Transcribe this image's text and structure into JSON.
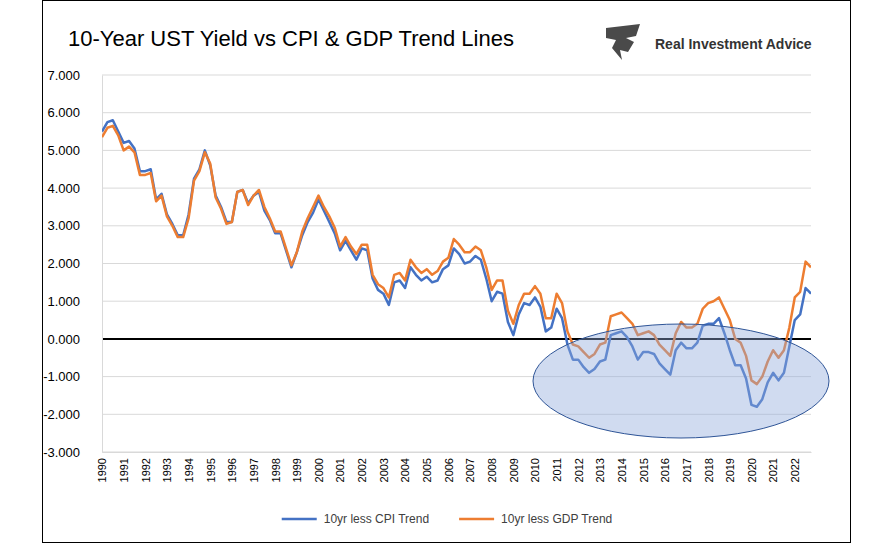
{
  "chart_data": {
    "type": "line",
    "title": "10-Year UST Yield vs CPI & GDP Trend Lines",
    "logo_text": "Real Investment Advice",
    "categories": [
      "1990",
      null,
      null,
      null,
      "1991",
      null,
      null,
      null,
      "1992",
      null,
      null,
      null,
      "1993",
      null,
      null,
      null,
      "1994",
      null,
      null,
      null,
      "1995",
      null,
      null,
      null,
      "1996",
      null,
      null,
      null,
      "1997",
      null,
      null,
      null,
      "1998",
      null,
      null,
      null,
      "1999",
      null,
      null,
      null,
      "2000",
      null,
      null,
      null,
      "2001",
      null,
      null,
      null,
      "2002",
      null,
      null,
      null,
      "2003",
      null,
      null,
      null,
      "2004",
      null,
      null,
      null,
      "2005",
      null,
      null,
      null,
      "2006",
      null,
      null,
      null,
      "2007",
      null,
      null,
      null,
      "2008",
      null,
      null,
      null,
      "2009",
      null,
      null,
      null,
      "2010",
      null,
      null,
      null,
      "2011",
      null,
      null,
      null,
      "2012",
      null,
      null,
      null,
      "2013",
      null,
      null,
      null,
      "2014",
      null,
      null,
      null,
      "2015",
      null,
      null,
      null,
      "2016",
      null,
      null,
      null,
      "2017",
      null,
      null,
      null,
      "2018",
      null,
      null,
      null,
      "2019",
      null,
      null,
      null,
      "2020",
      null,
      null,
      null,
      "2021",
      null,
      null,
      null,
      "2022",
      null,
      null,
      null
    ],
    "series": [
      {
        "name": "10yr less CPI Trend",
        "color": "#4472c4",
        "values": [
          5.5,
          5.75,
          5.8,
          5.5,
          5.2,
          5.25,
          5.05,
          4.45,
          4.45,
          4.5,
          3.7,
          3.85,
          3.3,
          3.05,
          2.75,
          2.75,
          3.3,
          4.25,
          4.5,
          5.0,
          4.6,
          3.8,
          3.5,
          3.1,
          3.1,
          3.9,
          3.95,
          3.6,
          3.8,
          3.9,
          3.4,
          3.15,
          2.8,
          2.8,
          2.35,
          1.9,
          2.3,
          2.75,
          3.1,
          3.35,
          3.7,
          3.4,
          3.1,
          2.8,
          2.35,
          2.6,
          2.35,
          2.1,
          2.4,
          2.35,
          1.6,
          1.3,
          1.2,
          0.9,
          1.5,
          1.55,
          1.35,
          1.9,
          1.7,
          1.55,
          1.65,
          1.5,
          1.55,
          1.85,
          1.95,
          2.4,
          2.25,
          2.0,
          2.05,
          2.2,
          2.1,
          1.6,
          1.0,
          1.25,
          1.2,
          0.45,
          0.1,
          0.65,
          0.95,
          0.9,
          1.1,
          0.85,
          0.2,
          0.3,
          0.8,
          0.55,
          -0.15,
          -0.55,
          -0.55,
          -0.75,
          -0.9,
          -0.8,
          -0.6,
          -0.55,
          0.1,
          0.15,
          0.2,
          0.05,
          -0.2,
          -0.55,
          -0.35,
          -0.35,
          -0.4,
          -0.65,
          -0.8,
          -0.95,
          -0.3,
          -0.1,
          -0.25,
          -0.25,
          -0.1,
          0.35,
          0.4,
          0.4,
          0.55,
          0.15,
          -0.3,
          -0.7,
          -0.7,
          -1.05,
          -1.75,
          -1.8,
          -1.6,
          -1.15,
          -0.9,
          -1.1,
          -0.9,
          -0.2,
          0.5,
          0.65,
          1.35,
          1.2
        ]
      },
      {
        "name": "10yr less GDP Trend",
        "color": "#ed7d31",
        "values": [
          5.35,
          5.6,
          5.65,
          5.4,
          5.0,
          5.1,
          4.95,
          4.35,
          4.35,
          4.4,
          3.65,
          3.8,
          3.25,
          3.0,
          2.7,
          2.7,
          3.2,
          4.2,
          4.45,
          4.95,
          4.65,
          3.75,
          3.45,
          3.05,
          3.1,
          3.9,
          3.95,
          3.55,
          3.8,
          3.95,
          3.5,
          3.2,
          2.85,
          2.85,
          2.4,
          1.95,
          2.3,
          2.85,
          3.2,
          3.5,
          3.8,
          3.5,
          3.25,
          2.95,
          2.45,
          2.7,
          2.45,
          2.25,
          2.5,
          2.5,
          1.7,
          1.45,
          1.35,
          1.1,
          1.7,
          1.75,
          1.55,
          2.1,
          1.9,
          1.75,
          1.85,
          1.7,
          1.8,
          2.05,
          2.15,
          2.65,
          2.5,
          2.3,
          2.3,
          2.45,
          2.35,
          1.9,
          1.3,
          1.55,
          1.55,
          0.75,
          0.4,
          0.9,
          1.2,
          1.2,
          1.4,
          1.2,
          0.55,
          0.55,
          1.2,
          0.95,
          0.2,
          -0.15,
          -0.2,
          -0.35,
          -0.5,
          -0.4,
          -0.15,
          -0.1,
          0.6,
          0.65,
          0.7,
          0.55,
          0.4,
          0.1,
          0.15,
          0.2,
          0.1,
          -0.15,
          -0.3,
          -0.45,
          0.15,
          0.45,
          0.3,
          0.3,
          0.4,
          0.8,
          0.95,
          1.0,
          1.1,
          0.8,
          0.5,
          0.0,
          -0.1,
          -0.45,
          -1.1,
          -1.2,
          -1.0,
          -0.6,
          -0.3,
          -0.5,
          -0.3,
          0.3,
          1.1,
          1.25,
          2.05,
          1.9
        ]
      }
    ],
    "ylim": [
      -3,
      7
    ],
    "yticks": [
      {
        "value": -3,
        "label": "-3.000"
      },
      {
        "value": -2,
        "label": "-2.000"
      },
      {
        "value": -1,
        "label": "-1.000"
      },
      {
        "value": 0,
        "label": "0.000"
      },
      {
        "value": 1,
        "label": "1.000"
      },
      {
        "value": 2,
        "label": "2.000"
      },
      {
        "value": 3,
        "label": "3.000"
      },
      {
        "value": 4,
        "label": "4.000"
      },
      {
        "value": 5,
        "label": "5.000"
      },
      {
        "value": 6,
        "label": "6.000"
      },
      {
        "value": 7,
        "label": "7.000"
      }
    ],
    "grid": true,
    "legend": "bottom"
  }
}
